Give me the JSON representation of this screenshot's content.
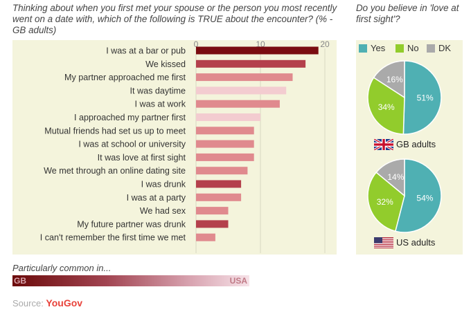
{
  "question_left": "Thinking about when you first met your spouse or the person you most recently went on a date with, which of the following is TRUE about the encounter? (% - GB adults)",
  "question_right": "Do you believe in 'love at first sight'?",
  "legend": [
    {
      "label": "Yes",
      "color": "#4fb0b3"
    },
    {
      "label": "No",
      "color": "#92cc2c"
    },
    {
      "label": "DK",
      "color": "#aaaaaa"
    }
  ],
  "pies": [
    {
      "flag_label": "GB adults",
      "flag": "uk-flag-icon"
    },
    {
      "flag_label": "US adults",
      "flag": "us-flag-icon"
    }
  ],
  "common": {
    "label": "Particularly common in...",
    "left": "GB",
    "right": "USA"
  },
  "source": {
    "prefix": "Source: ",
    "brand": "YouGov"
  },
  "chart_data": [
    {
      "type": "bar",
      "orientation": "horizontal",
      "title": "Thinking about when you first met your spouse or the person you most recently went on a date with, which of the following is TRUE about the encounter? (% - GB adults)",
      "xlim": [
        0,
        21
      ],
      "xticks": [
        0,
        10,
        20
      ],
      "grid": true,
      "categories": [
        "I was at a bar or pub",
        "We kissed",
        "My partner approached me first",
        "It was daytime",
        "I was at work",
        "I approached my partner first",
        "Mutual friends had set us up to meet",
        "I was at school or university",
        "It was love at first sight",
        "We met through an online dating site",
        "I was drunk",
        "I was at a party",
        "We had sex",
        "My future partner was drunk",
        "I can't remember the first time we met"
      ],
      "values": [
        19,
        17,
        15,
        14,
        13,
        10,
        9,
        9,
        9,
        8,
        7,
        7,
        5,
        5,
        3
      ],
      "colors": [
        "#7a0c10",
        "#b4404c",
        "#e08a8e",
        "#f3ccd0",
        "#e08a8e",
        "#f3ccd0",
        "#e08a8e",
        "#e08a8e",
        "#e08a8e",
        "#e08a8e",
        "#b4404c",
        "#e08a8e",
        "#e08a8e",
        "#b4404c",
        "#e08a8e"
      ]
    },
    {
      "type": "pie",
      "title": "GB adults",
      "slices": [
        {
          "label": "Yes",
          "value": 51,
          "color": "#4fb0b3"
        },
        {
          "label": "No",
          "value": 34,
          "color": "#92cc2c"
        },
        {
          "label": "DK",
          "value": 16,
          "color": "#aaaaaa"
        }
      ]
    },
    {
      "type": "pie",
      "title": "US adults",
      "slices": [
        {
          "label": "Yes",
          "value": 54,
          "color": "#4fb0b3"
        },
        {
          "label": "No",
          "value": 32,
          "color": "#92cc2c"
        },
        {
          "label": "DK",
          "value": 14,
          "color": "#aaaaaa"
        }
      ]
    }
  ]
}
